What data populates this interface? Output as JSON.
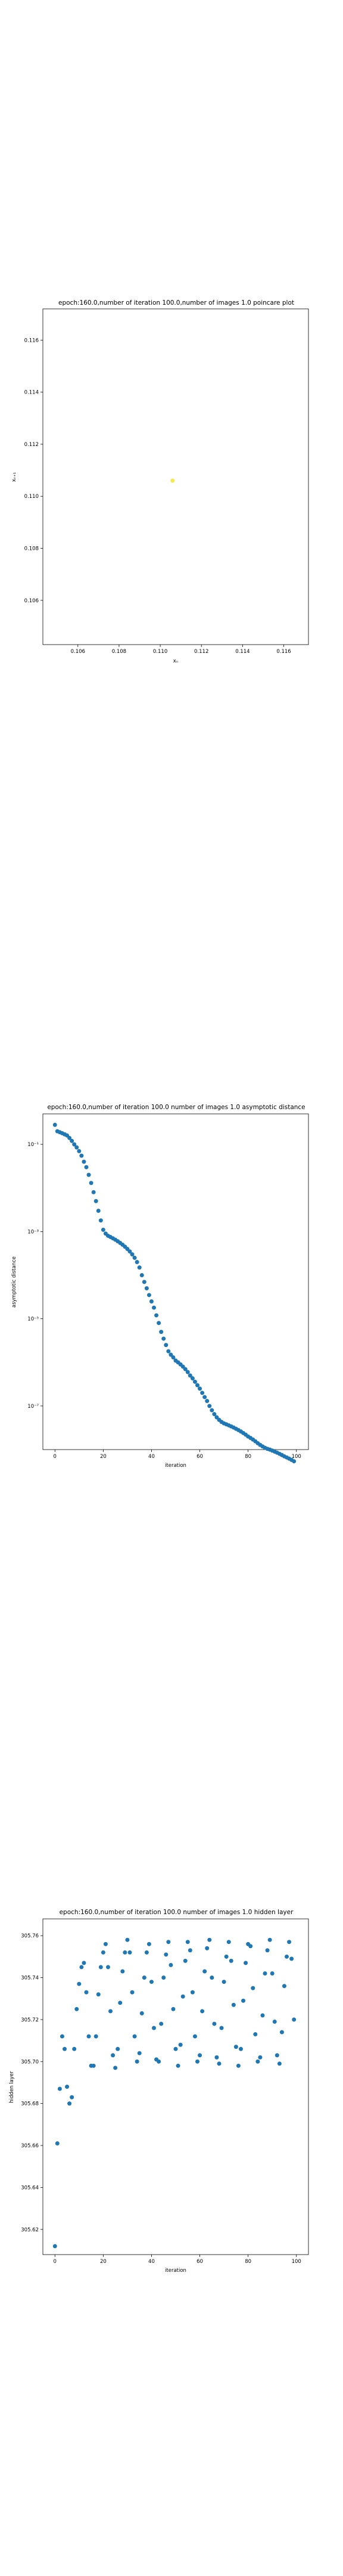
{
  "charts": [
    {
      "type": "scatter",
      "title": "epoch:160.0,number of iteration 100.0,number of images 1.0 poincare plot",
      "xlabel": "xₙ",
      "ylabel": "xₙ₊₁",
      "xlim": [
        0.1043,
        0.1172
      ],
      "ylim": [
        0.1043,
        0.1172
      ],
      "xticks": [
        "0.106",
        "0.108",
        "0.110",
        "0.112",
        "0.114",
        "0.116"
      ],
      "yticks": [
        "0.106",
        "0.108",
        "0.110",
        "0.112",
        "0.114",
        "0.116"
      ],
      "tick_values": [
        0.106,
        0.108,
        0.11,
        0.112,
        0.114,
        0.116
      ],
      "point_color": "#f5e94b",
      "points": [
        [
          0.1106,
          0.1106
        ]
      ]
    },
    {
      "type": "scatter",
      "title": "epoch:160.0,number of iteration 100.0  number of images 1.0 asymptotic distance",
      "xlabel": "iteration",
      "ylabel": "asymptotic distance",
      "xticks": [
        "0",
        "20",
        "40",
        "60",
        "80",
        "100"
      ],
      "yticks": [
        "10⁻¹",
        "10⁻³",
        "10⁻⁵",
        "10⁻⁷"
      ],
      "point_color": "#1f77b4"
    },
    {
      "type": "scatter",
      "title": "epoch:160.0,number of iteration 100.0  number of images 1.0 hidden layer",
      "xlabel": "iteration",
      "ylabel": "hidden layer",
      "xticks": [
        "0",
        "20",
        "40",
        "60",
        "80",
        "100"
      ],
      "yticks": [
        "305.62",
        "305.64",
        "305.66",
        "305.68",
        "305.70",
        "305.72",
        "305.74",
        "305.76"
      ],
      "ylim": [
        305.608,
        305.768
      ],
      "point_color": "#1f77b4"
    }
  ],
  "chart_data": [
    {
      "type": "scatter",
      "x": [
        0.1106
      ],
      "y": [
        0.1106
      ]
    },
    {
      "type": "scatter",
      "yscale": "log",
      "ylim": [
        1e-08,
        0.5
      ],
      "xlim": [
        -5,
        105
      ],
      "x": [
        0,
        1,
        2,
        3,
        4,
        5,
        6,
        7,
        8,
        9,
        10,
        11,
        12,
        13,
        14,
        15,
        16,
        17,
        18,
        19,
        20,
        21,
        22,
        23,
        24,
        25,
        26,
        27,
        28,
        29,
        30,
        31,
        32,
        33,
        34,
        35,
        36,
        37,
        38,
        39,
        40,
        41,
        42,
        43,
        44,
        45,
        46,
        47,
        48,
        49,
        50,
        51,
        52,
        53,
        54,
        55,
        56,
        57,
        58,
        59,
        60,
        61,
        62,
        63,
        64,
        65,
        66,
        67,
        68,
        69,
        70,
        71,
        72,
        73,
        74,
        75,
        76,
        77,
        78,
        79,
        80,
        81,
        82,
        83,
        84,
        85,
        86,
        87,
        88,
        89,
        90,
        91,
        92,
        93,
        94,
        95,
        96,
        97,
        98,
        99
      ],
      "y": [
        0.28,
        0.2,
        0.19,
        0.18,
        0.17,
        0.16,
        0.14,
        0.12,
        0.1,
        0.085,
        0.07,
        0.055,
        0.04,
        0.03,
        0.02,
        0.013,
        0.008,
        0.005,
        0.003,
        0.0018,
        0.0011,
        0.0009,
        0.0008,
        0.00075,
        0.0007,
        0.00065,
        0.0006,
        0.00055,
        0.0005,
        0.00045,
        0.0004,
        0.00035,
        0.0003,
        0.00025,
        0.0002,
        0.00015,
        0.0001,
        7e-05,
        5e-05,
        3.5e-05,
        2.5e-05,
        1.8e-05,
        1.2e-05,
        8e-06,
        5e-06,
        3.5e-06,
        2.5e-06,
        1.8e-06,
        1.5e-06,
        1.3e-06,
        1.1e-06,
        1e-06,
        9e-07,
        8e-07,
        7e-07,
        6e-07,
        5e-07,
        4.3e-07,
        3.6e-07,
        3e-07,
        2.5e-07,
        2e-07,
        1.6e-07,
        1.3e-07,
        1e-07,
        8e-08,
        6.5e-08,
        5.5e-08,
        4.8e-08,
        4.3e-08,
        4e-08,
        3.8e-08,
        3.6e-08,
        3.4e-08,
        3.2e-08,
        3e-08,
        2.8e-08,
        2.6e-08,
        2.4e-08,
        2.2e-08,
        2e-08,
        1.85e-08,
        1.7e-08,
        1.55e-08,
        1.4e-08,
        1.28e-08,
        1.18e-08,
        1.1e-08,
        1.04e-08,
        1e-08,
        9.5e-09,
        9e-09,
        8.5e-09,
        8e-09,
        7.5e-09,
        7e-09,
        6.6e-09,
        6.2e-09,
        5.8e-09,
        5.4e-09
      ]
    },
    {
      "type": "scatter",
      "xlim": [
        -5,
        105
      ],
      "ylim": [
        305.608,
        305.768
      ],
      "x": [
        0,
        1,
        2,
        3,
        4,
        5,
        6,
        7,
        8,
        9,
        10,
        11,
        12,
        13,
        14,
        15,
        16,
        17,
        18,
        19,
        20,
        21,
        22,
        23,
        24,
        25,
        26,
        27,
        28,
        29,
        30,
        31,
        32,
        33,
        34,
        35,
        36,
        37,
        38,
        39,
        40,
        41,
        42,
        43,
        44,
        45,
        46,
        47,
        48,
        49,
        50,
        51,
        52,
        53,
        54,
        55,
        56,
        57,
        58,
        59,
        60,
        61,
        62,
        63,
        64,
        65,
        66,
        67,
        68,
        69,
        70,
        71,
        72,
        73,
        74,
        75,
        76,
        77,
        78,
        79,
        80,
        81,
        82,
        83,
        84,
        85,
        86,
        87,
        88,
        89,
        90,
        91,
        92,
        93,
        94,
        95,
        96,
        97,
        98,
        99
      ],
      "y": [
        305.612,
        305.661,
        305.687,
        305.712,
        305.706,
        305.688,
        305.68,
        305.683,
        305.706,
        305.725,
        305.737,
        305.745,
        305.747,
        305.733,
        305.712,
        305.698,
        305.698,
        305.712,
        305.732,
        305.745,
        305.752,
        305.756,
        305.745,
        305.724,
        305.703,
        305.697,
        305.706,
        305.728,
        305.743,
        305.752,
        305.758,
        305.752,
        305.733,
        305.712,
        305.7,
        305.704,
        305.723,
        305.74,
        305.752,
        305.756,
        305.738,
        305.716,
        305.701,
        305.7,
        305.718,
        305.74,
        305.751,
        305.757,
        305.746,
        305.725,
        305.706,
        305.698,
        305.708,
        305.731,
        305.748,
        305.757,
        305.753,
        305.733,
        305.712,
        305.7,
        305.703,
        305.724,
        305.743,
        305.754,
        305.758,
        305.74,
        305.718,
        305.702,
        305.699,
        305.716,
        305.738,
        305.75,
        305.757,
        305.748,
        305.727,
        305.707,
        305.698,
        305.706,
        305.729,
        305.747,
        305.756,
        305.755,
        305.735,
        305.713,
        305.7,
        305.702,
        305.722,
        305.742,
        305.753,
        305.758,
        305.742,
        305.719,
        305.703,
        305.699,
        305.714,
        305.736,
        305.75,
        305.757,
        305.749,
        305.72
      ]
    }
  ]
}
